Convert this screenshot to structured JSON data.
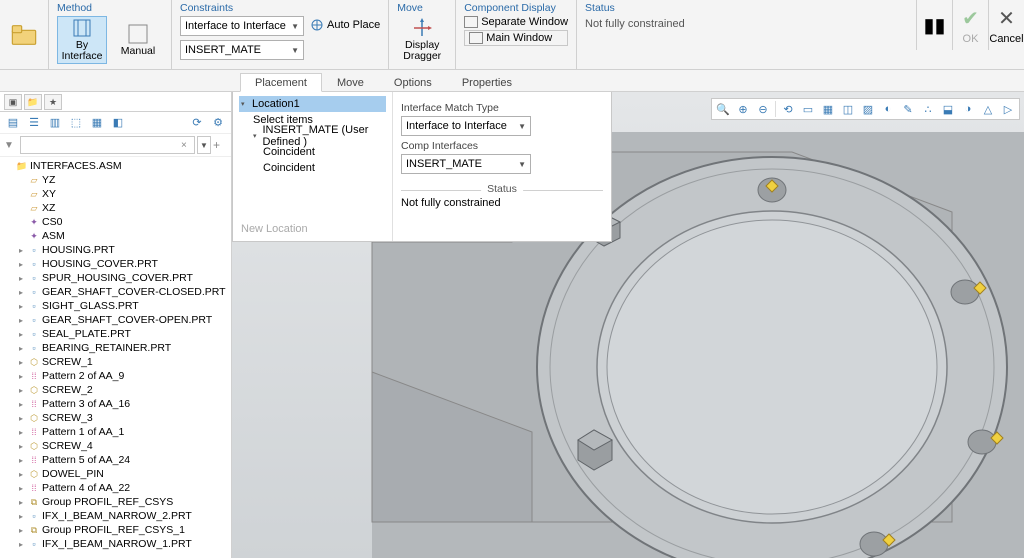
{
  "ribbon": {
    "method": {
      "title": "Method",
      "byInterface": "By Interface",
      "manual": "Manual"
    },
    "constraints": {
      "title": "Constraints",
      "dd1": "Interface to Interface",
      "dd2": "INSERT_MATE",
      "autoPlace": "Auto Place"
    },
    "move": {
      "title": "Move",
      "displayDragger": "Display Dragger"
    },
    "compDisplay": {
      "title": "Component Display",
      "sepWindow": "Separate Window",
      "mainWindow": "Main Window"
    },
    "status": {
      "title": "Status",
      "text": "Not fully constrained"
    },
    "ok": "OK",
    "cancel": "Cancel"
  },
  "tabs": {
    "placement": "Placement",
    "movetab": "Move",
    "options": "Options",
    "properties": "Properties"
  },
  "placePanel": {
    "location": "Location1",
    "selectItems": "Select items",
    "insertMate": "INSERT_MATE (User Defined )",
    "coincident": "Coincident",
    "newLocation": "New Location",
    "interfaceMatch": "Interface Match Type",
    "interfaceMatchVal": "Interface to Interface",
    "compInterfaces": "Comp Interfaces",
    "compInterfacesVal": "INSERT_MATE",
    "statusLabel": "Status",
    "statusText": "Not fully constrained"
  },
  "tree": {
    "root": "INTERFACES.ASM",
    "planes": [
      "YZ",
      "XY",
      "XZ"
    ],
    "csys": "CS0",
    "asm": "ASM",
    "parts": [
      "HOUSING.PRT",
      "HOUSING_COVER.PRT",
      "SPUR_HOUSING_COVER.PRT",
      "GEAR_SHAFT_COVER-CLOSED.PRT",
      "SIGHT_GLASS.PRT",
      "GEAR_SHAFT_COVER-OPEN.PRT",
      "SEAL_PLATE.PRT",
      "BEARING_RETAINER.PRT"
    ],
    "items2": [
      {
        "t": "screw",
        "l": "SCREW_1"
      },
      {
        "t": "pat",
        "l": "Pattern 2 of AA_9"
      },
      {
        "t": "screw",
        "l": "SCREW_2"
      },
      {
        "t": "pat",
        "l": "Pattern 3 of AA_16"
      },
      {
        "t": "screw",
        "l": "SCREW_3"
      },
      {
        "t": "pat",
        "l": "Pattern 1 of AA_1"
      },
      {
        "t": "screw",
        "l": "SCREW_4"
      },
      {
        "t": "pat",
        "l": "Pattern 5 of AA_24"
      },
      {
        "t": "screw",
        "l": "DOWEL_PIN"
      },
      {
        "t": "pat",
        "l": "Pattern 4 of AA_22"
      },
      {
        "t": "group",
        "l": "Group PROFIL_REF_CSYS"
      },
      {
        "t": "prt",
        "l": "IFX_I_BEAM_NARROW_2.PRT"
      },
      {
        "t": "group",
        "l": "Group PROFIL_REF_CSYS_1"
      },
      {
        "t": "prt",
        "l": "IFX_I_BEAM_NARROW_1.PRT"
      }
    ]
  },
  "colors": {
    "accent": "#3a7bb5",
    "selBg": "#a6cdee",
    "body": "#b8bcbf",
    "flange": "#c8ccce",
    "edge": "#707478",
    "bolt": "#888c8f",
    "diamond": "#e8c030"
  }
}
